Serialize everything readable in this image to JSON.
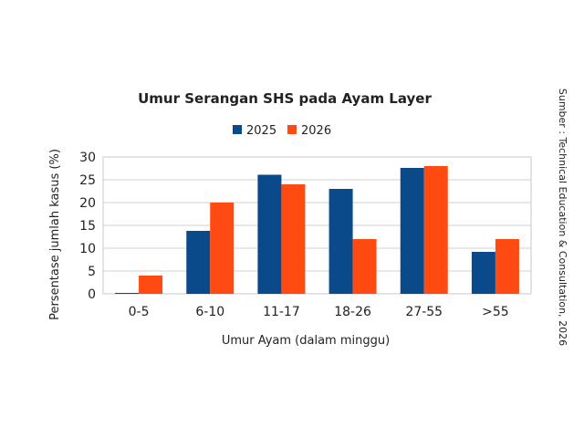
{
  "chart_data": {
    "type": "bar",
    "title": "Umur Serangan SHS pada Ayam Layer",
    "xlabel": "Umur Ayam (dalam minggu)",
    "ylabel": "Persentase jumlah kasus (%)",
    "categories": [
      "0-5",
      "6-10",
      "11-17",
      "18-26",
      "27-55",
      ">55"
    ],
    "series": [
      {
        "name": "2025",
        "color": "#0a4a8a",
        "values": [
          0.2,
          13.8,
          26.1,
          23.0,
          27.6,
          9.2
        ]
      },
      {
        "name": "2026",
        "color": "#ff4a12",
        "values": [
          4.0,
          20.0,
          24.0,
          12.0,
          28.0,
          12.0
        ]
      }
    ],
    "ylim": [
      0,
      30
    ],
    "yticks": [
      0,
      5,
      10,
      15,
      20,
      25,
      30
    ],
    "grid": true,
    "legend": "top-center",
    "source_note": "Sumber : Technical Education & Consultation, 2026"
  }
}
